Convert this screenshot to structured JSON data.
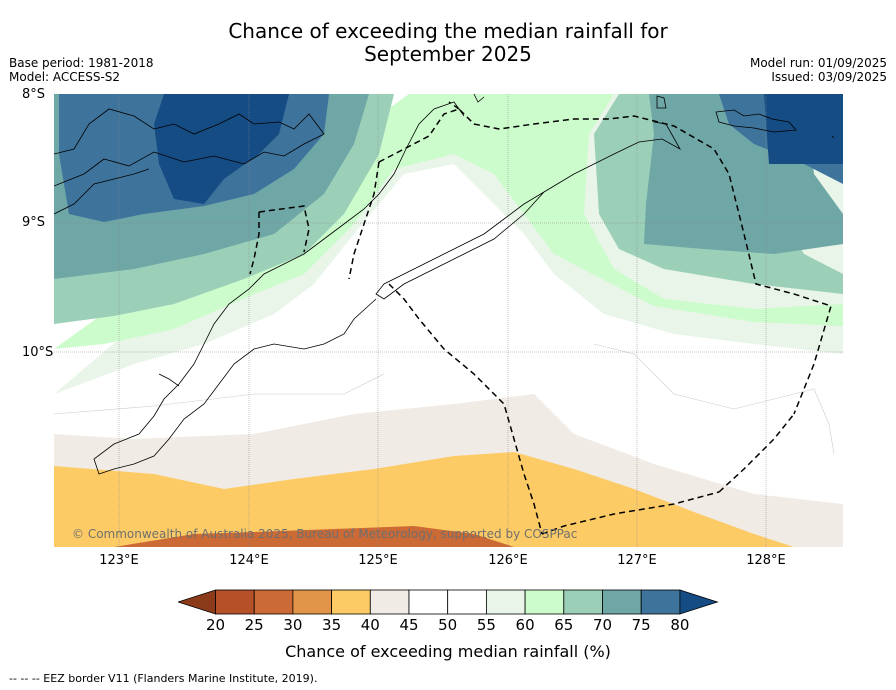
{
  "title_line1": "Chance of exceeding the median rainfall for",
  "title_line2": "September 2025",
  "base_period": "Base period: 1981-2018",
  "model": "Model: ACCESS-S2",
  "model_run": "Model run: 01/09/2025",
  "issued": "Issued: 03/09/2025",
  "lat_labels": [
    "8°S",
    "9°S",
    "10°S"
  ],
  "lon_labels": [
    "123°E",
    "124°E",
    "125°E",
    "126°E",
    "127°E",
    "128°E"
  ],
  "copyright": "© Commonwealth of Australia 2025, Bureau of Meteorology, supported by COSPPac",
  "colorbar": {
    "labels": [
      "20",
      "25",
      "30",
      "35",
      "40",
      "45",
      "50",
      "55",
      "60",
      "65",
      "70",
      "75",
      "80"
    ],
    "colors": [
      "#8b3a1a",
      "#b55028",
      "#cb6a35",
      "#e19548",
      "#fdcb65",
      "#f0ebe4",
      "#ffffff",
      "#ffffff",
      "#e8f5e8",
      "#ccfccc",
      "#9bcfb8",
      "#6fa6a6",
      "#3e749c",
      "#154c84"
    ],
    "title": "Chance of exceeding median rainfall (%)"
  },
  "footer": "--  --  -- EEZ border V11 (Flanders Marine Institute, 2019)."
}
